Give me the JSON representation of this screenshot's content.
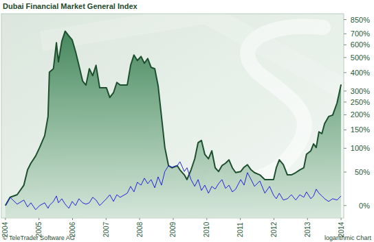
{
  "chart_data": {
    "type": "line",
    "title": "Dubai Financial Market General Index",
    "annotations": [
      "© TeleTrader Software AG",
      "logarithmic Chart"
    ],
    "log": "y",
    "x": [
      2004.0,
      2004.14,
      2004.35,
      2004.55,
      2004.66,
      2004.76,
      2004.9,
      2005.02,
      2005.17,
      2005.27,
      2005.31,
      2005.43,
      2005.52,
      2005.58,
      2005.68,
      2005.78,
      2005.89,
      2005.99,
      2006.09,
      2006.19,
      2006.3,
      2006.4,
      2006.5,
      2006.6,
      2006.7,
      2006.81,
      2007.01,
      2007.11,
      2007.22,
      2007.32,
      2007.42,
      2007.63,
      2007.73,
      2007.83,
      2007.93,
      2008.04,
      2008.14,
      2008.24,
      2008.34,
      2008.45,
      2008.55,
      2008.65,
      2008.75,
      2008.86,
      2008.96,
      2009.12,
      2009.2,
      2009.33,
      2009.41,
      2009.53,
      2009.64,
      2009.74,
      2009.84,
      2009.94,
      2010.05,
      2010.15,
      2010.25,
      2010.35,
      2010.45,
      2010.56,
      2010.66,
      2010.76,
      2010.86,
      2011.01,
      2011.11,
      2011.21,
      2011.32,
      2011.42,
      2011.58,
      2011.73,
      2011.87,
      2011.99,
      2012.07,
      2012.16,
      2012.28,
      2012.4,
      2012.52,
      2012.65,
      2012.77,
      2012.89,
      2012.97,
      2013.1,
      2013.18,
      2013.26,
      2013.34,
      2013.43,
      2013.51,
      2013.63,
      2013.75,
      2013.88,
      2014.0
    ],
    "series": [
      {
        "type": "area",
        "color": "#1d4f2e",
        "values": [
          0,
          10.5,
          14,
          28,
          54,
          67,
          82,
          102,
          133,
          194,
          403,
          424,
          618,
          469,
          630,
          726,
          680,
          643,
          545,
          446,
          352,
          330,
          424,
          382,
          446,
          316,
          316,
          270,
          292,
          344,
          330,
          330,
          446,
          519,
          479,
          508,
          460,
          493,
          433,
          424,
          326,
          194,
          102,
          62,
          58,
          62,
          54,
          45,
          37,
          54,
          76,
          114,
          120,
          86,
          76,
          94,
          58,
          51,
          62,
          67,
          74,
          58,
          49,
          51,
          59,
          64,
          54,
          49,
          45,
          37,
          37,
          37,
          58,
          74,
          64,
          45,
          45,
          49,
          54,
          58,
          86,
          94,
          111,
          102,
          144,
          139,
          170,
          194,
          199,
          246,
          333
        ]
      },
      {
        "type": "line",
        "color": "#2222dd",
        "values": [
          0,
          10.5,
          1.7,
          6.9,
          -1.7,
          3.4,
          -4.9,
          0,
          3.4,
          -3.3,
          0,
          5.1,
          12.3,
          3.4,
          8.6,
          1.7,
          -3.3,
          5.1,
          0,
          8.6,
          3.4,
          1.7,
          3.4,
          10.5,
          6.9,
          0,
          8.6,
          14,
          5.1,
          14,
          10.5,
          16.1,
          26.1,
          18,
          32.5,
          28,
          39.3,
          30.3,
          37,
          24,
          41.6,
          28,
          51,
          62,
          59,
          62,
          70,
          51,
          58,
          37,
          26.1,
          37,
          20,
          28,
          16.1,
          26.1,
          22,
          30.3,
          37,
          23,
          28,
          18,
          22,
          37,
          28,
          49,
          37,
          26.1,
          34.7,
          16.1,
          26.1,
          13.2,
          8.6,
          16.1,
          6.9,
          8.6,
          14,
          6.9,
          14,
          10.5,
          18,
          8.6,
          12.3,
          22,
          16.1,
          12.3,
          8.6,
          5.1,
          8.6,
          6.9,
          12.3
        ]
      }
    ],
    "xlim": [
      2003.88,
      2014.08
    ],
    "xticks": [
      2004,
      2005,
      2006,
      2007,
      2008,
      2009,
      2010,
      2011,
      2012,
      2013,
      2014
    ],
    "ylim": [
      -14,
      920
    ],
    "yticks": [
      {
        "value": 850,
        "label": "850%"
      },
      {
        "value": 700,
        "label": "700%"
      },
      {
        "value": 600,
        "label": "600%"
      },
      {
        "value": 500,
        "label": "500%"
      },
      {
        "value": 400,
        "label": "400%"
      },
      {
        "value": 300,
        "label": "300%"
      },
      {
        "value": 250,
        "label": "250%"
      },
      {
        "value": 200,
        "label": "200%"
      },
      {
        "value": 150,
        "label": "150%"
      },
      {
        "value": 100,
        "label": "100%"
      },
      {
        "value": 50,
        "label": "50%"
      },
      {
        "value": 0,
        "label": "0%"
      }
    ]
  }
}
